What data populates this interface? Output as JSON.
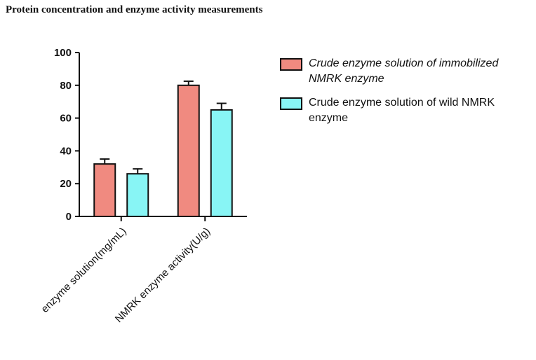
{
  "chart_data": {
    "type": "bar",
    "title": "Protein concentration and enzyme activity measurements",
    "categories": [
      "enzyme solution(mg/mL)",
      "NMRK enzyme activity(U/g)"
    ],
    "series": [
      {
        "name": "Crude enzyme solution of immobilized NMRK enzyme",
        "color": "#f08a80",
        "values": [
          32,
          80
        ],
        "errors": [
          3,
          2.5
        ]
      },
      {
        "name": "Crude enzyme solution of wild NMRK enzyme",
        "color": "#88f5f5",
        "values": [
          26,
          65
        ],
        "errors": [
          3,
          4
        ]
      }
    ],
    "ylim": [
      0,
      100
    ],
    "yticks": [
      0,
      20,
      40,
      60,
      80,
      100
    ]
  }
}
